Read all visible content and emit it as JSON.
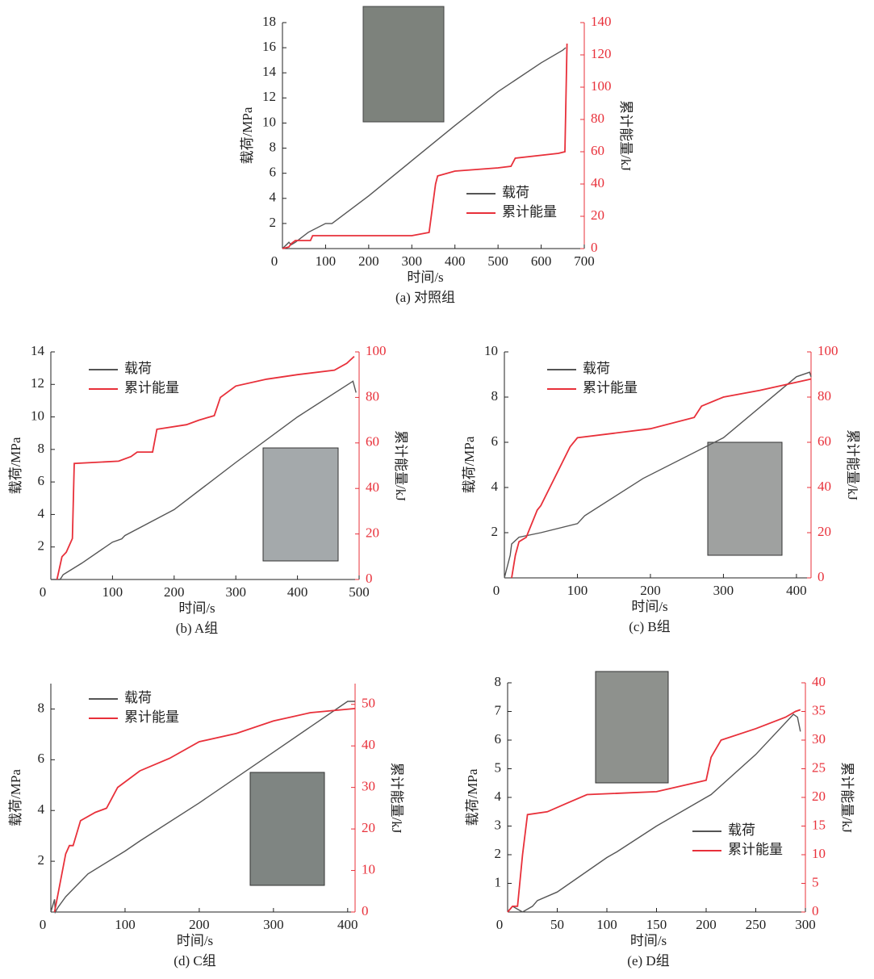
{
  "chart_data": [
    {
      "type": "line",
      "caption": "(a) 对照组",
      "xlabel": "时间/s",
      "ylabel": "载荷/MPa",
      "y2label": "累计能量/kJ",
      "xlim": [
        0,
        700
      ],
      "xticks": [
        0,
        100,
        200,
        300,
        400,
        500,
        600,
        700
      ],
      "ylim": [
        0,
        18
      ],
      "yticks": [
        2,
        4,
        6,
        8,
        10,
        12,
        14,
        16,
        18
      ],
      "y2lim": [
        0,
        140
      ],
      "y2ticks": [
        0,
        20,
        40,
        60,
        80,
        100,
        120,
        140
      ],
      "legend": "center-right",
      "series": [
        {
          "name": "载荷",
          "color": "#555555",
          "x": [
            0,
            15,
            20,
            30,
            60,
            100,
            115,
            200,
            300,
            400,
            500,
            600,
            650,
            657
          ],
          "values": [
            0,
            0.5,
            0.3,
            0.5,
            1.3,
            2,
            2,
            4.2,
            7,
            9.8,
            12.5,
            14.8,
            15.8,
            16
          ]
        },
        {
          "name": "累计能量",
          "color": "#e8303a",
          "axis": "y2",
          "x": [
            0,
            15,
            20,
            30,
            65,
            70,
            200,
            300,
            340,
            355,
            360,
            400,
            500,
            530,
            540,
            640,
            655,
            660
          ],
          "values": [
            0,
            1,
            3,
            5,
            5,
            8,
            8,
            8,
            10,
            40,
            45,
            48,
            50,
            51,
            56,
            59,
            60,
            127
          ]
        }
      ]
    },
    {
      "type": "line",
      "caption": "(b) A组",
      "xlabel": "时间/s",
      "ylabel": "载荷/MPa",
      "y2label": "累计能量/kJ",
      "xlim": [
        0,
        500
      ],
      "xticks": [
        0,
        100,
        200,
        300,
        400,
        500
      ],
      "ylim": [
        0,
        14
      ],
      "yticks": [
        2,
        4,
        6,
        8,
        10,
        12,
        14
      ],
      "y2lim": [
        0,
        100
      ],
      "y2ticks": [
        0,
        20,
        40,
        60,
        80,
        100
      ],
      "legend": "upper-left",
      "series": [
        {
          "name": "载荷",
          "color": "#555555",
          "x": [
            0,
            15,
            20,
            50,
            100,
            115,
            120,
            200,
            300,
            400,
            490,
            495
          ],
          "values": [
            0,
            0,
            0.3,
            1,
            2.3,
            2.5,
            2.7,
            4.3,
            7.2,
            10,
            12.2,
            11.5
          ]
        },
        {
          "name": "累计能量",
          "color": "#e8303a",
          "axis": "y2",
          "x": [
            10,
            18,
            25,
            30,
            35,
            38,
            110,
            130,
            140,
            165,
            172,
            220,
            240,
            265,
            275,
            300,
            350,
            400,
            460,
            480,
            492
          ],
          "values": [
            0,
            10,
            12,
            15,
            18,
            51,
            52,
            54,
            56,
            56,
            66,
            68,
            70,
            72,
            80,
            85,
            88,
            90,
            92,
            95,
            98
          ]
        }
      ]
    },
    {
      "type": "line",
      "caption": "(c) B组",
      "xlabel": "时间/s",
      "ylabel": "载荷/MPa",
      "y2label": "累计能量/kJ",
      "xlim": [
        0,
        420
      ],
      "xticks": [
        0,
        100,
        200,
        300,
        400
      ],
      "ylim": [
        0,
        10
      ],
      "yticks": [
        2,
        4,
        6,
        8,
        10
      ],
      "y2lim": [
        0,
        100
      ],
      "y2ticks": [
        0,
        20,
        40,
        60,
        80,
        100
      ],
      "legend": "upper-left",
      "series": [
        {
          "name": "载荷",
          "color": "#555555",
          "x": [
            0,
            8,
            10,
            20,
            50,
            100,
            110,
            190,
            300,
            400,
            418,
            420
          ],
          "values": [
            0,
            1,
            1.5,
            1.8,
            2,
            2.4,
            2.75,
            4.4,
            6.2,
            8.9,
            9.1,
            8.9
          ]
        },
        {
          "name": "累计能量",
          "color": "#e8303a",
          "axis": "y2",
          "x": [
            10,
            15,
            20,
            30,
            45,
            50,
            70,
            90,
            100,
            150,
            200,
            260,
            270,
            300,
            350,
            420
          ],
          "values": [
            0,
            10,
            16,
            18,
            30,
            32,
            45,
            58,
            62,
            64,
            66,
            71,
            76,
            80,
            83,
            88
          ]
        }
      ]
    },
    {
      "type": "line",
      "caption": "(d) C组",
      "xlabel": "时间/s",
      "ylabel": "载荷/MPa",
      "y2label": "累计能量/kJ",
      "xlim": [
        0,
        410
      ],
      "xticks": [
        0,
        100,
        200,
        300,
        400
      ],
      "ylim": [
        0,
        9
      ],
      "yticks": [
        2,
        4,
        6,
        8
      ],
      "y2lim": [
        0,
        55
      ],
      "y2ticks": [
        0,
        10,
        20,
        30,
        40,
        50
      ],
      "legend": "upper-left",
      "series": [
        {
          "name": "载荷",
          "color": "#555555",
          "x": [
            0,
            5,
            6,
            10,
            20,
            50,
            100,
            120,
            200,
            300,
            400,
            410
          ],
          "values": [
            0,
            0.5,
            0,
            0.2,
            0.6,
            1.5,
            2.4,
            2.8,
            4.3,
            6.3,
            8.3,
            8.3
          ]
        },
        {
          "name": "累计能量",
          "color": "#e8303a",
          "axis": "y2",
          "x": [
            5,
            20,
            25,
            30,
            40,
            60,
            75,
            90,
            120,
            160,
            200,
            250,
            300,
            350,
            410
          ],
          "values": [
            0,
            14,
            16,
            16,
            22,
            24,
            25,
            30,
            34,
            37,
            41,
            43,
            46,
            48,
            49
          ]
        }
      ]
    },
    {
      "type": "line",
      "caption": "(e) D组",
      "xlabel": "时间/s",
      "ylabel": "载荷/MPa",
      "y2label": "累计能量/kJ",
      "xlim": [
        0,
        300
      ],
      "xticks": [
        0,
        50,
        100,
        150,
        200,
        250,
        300
      ],
      "ylim": [
        0,
        8
      ],
      "yticks": [
        1,
        2,
        3,
        4,
        5,
        6,
        7,
        8
      ],
      "y2lim": [
        0,
        40
      ],
      "y2ticks": [
        0,
        5,
        10,
        15,
        20,
        25,
        30,
        35,
        40
      ],
      "legend": "lower-right",
      "series": [
        {
          "name": "载荷",
          "color": "#555555",
          "x": [
            0,
            5,
            10,
            15,
            25,
            30,
            50,
            100,
            110,
            150,
            200,
            205,
            250,
            288,
            292,
            295
          ],
          "values": [
            0,
            0.2,
            0.1,
            0,
            0.2,
            0.4,
            0.7,
            1.9,
            2.1,
            3,
            4,
            4.1,
            5.5,
            6.9,
            6.8,
            6.3
          ]
        },
        {
          "name": "累计能量",
          "color": "#e8303a",
          "axis": "y2",
          "x": [
            0,
            5,
            10,
            15,
            20,
            40,
            60,
            80,
            150,
            200,
            205,
            215,
            250,
            280,
            290,
            295
          ],
          "values": [
            0,
            1,
            1,
            10,
            17,
            17.5,
            19,
            20.5,
            21,
            23,
            27,
            30,
            32,
            34,
            35,
            35.3
          ]
        }
      ]
    }
  ]
}
